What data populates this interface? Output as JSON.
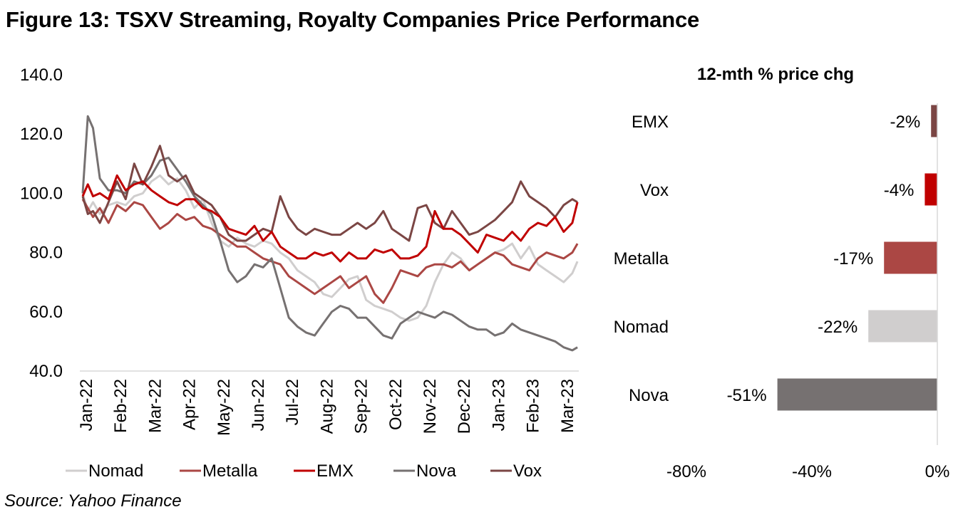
{
  "title": "Figure 13: TSXV Streaming, Royalty Companies Price Performance",
  "source": "Source: Yahoo Finance",
  "colors": {
    "Nomad": "#d0cece",
    "Metalla": "#ab4744",
    "EMX": "#c00000",
    "Nova": "#767171",
    "Vox": "#7b4644",
    "axis": "#d9d9d9"
  },
  "chart_data": [
    {
      "type": "line",
      "title": "",
      "xlabel": "",
      "ylabel": "",
      "ylim": [
        40,
        140
      ],
      "yticks": [
        "140.0",
        "120.0",
        "100.0",
        "80.0",
        "60.0",
        "40.0"
      ],
      "ytick_values": [
        140,
        120,
        100,
        80,
        60,
        40
      ],
      "categories": [
        "Jan-22",
        "Feb-22",
        "Mar-22",
        "Apr-22",
        "May-22",
        "Jun-22",
        "Jul-22",
        "Aug-22",
        "Sep-22",
        "Oct-22",
        "Nov-22",
        "Dec-22",
        "Jan-23",
        "Feb-23",
        "Mar-23"
      ],
      "x_months": [
        0,
        0.15,
        0.3,
        0.5,
        0.75,
        1,
        1.25,
        1.5,
        1.75,
        2,
        2.25,
        2.5,
        2.75,
        3,
        3.25,
        3.5,
        3.75,
        4,
        4.25,
        4.5,
        4.75,
        5,
        5.25,
        5.5,
        5.75,
        6,
        6.25,
        6.5,
        6.75,
        7,
        7.25,
        7.5,
        7.75,
        8,
        8.25,
        8.5,
        8.75,
        9,
        9.25,
        9.5,
        9.75,
        10,
        10.25,
        10.5,
        10.75,
        11,
        11.25,
        11.5,
        11.75,
        12,
        12.25,
        12.5,
        12.75,
        13,
        13.25,
        13.5,
        13.75,
        14,
        14.25,
        14.4
      ],
      "legend": "bottom",
      "series": [
        {
          "name": "Nomad",
          "values": [
            100,
            94,
            97,
            93,
            96,
            97,
            96,
            99,
            100,
            104,
            106,
            103,
            105,
            101,
            95,
            98,
            90,
            84,
            82,
            85,
            83,
            82,
            84,
            83,
            80,
            78,
            74,
            72,
            70,
            66,
            65,
            68,
            71,
            72,
            64,
            62,
            61,
            60,
            58,
            57,
            58,
            62,
            70,
            76,
            80,
            78,
            74,
            76,
            78,
            80,
            81,
            83,
            78,
            82,
            76,
            74,
            72,
            70,
            73,
            77
          ]
        },
        {
          "name": "Metalla",
          "values": [
            98,
            95,
            92,
            95,
            90,
            96,
            94,
            97,
            96,
            92,
            88,
            90,
            93,
            91,
            92,
            89,
            88,
            86,
            84,
            82,
            82,
            80,
            78,
            77,
            76,
            72,
            70,
            68,
            66,
            68,
            70,
            72,
            68,
            70,
            72,
            66,
            63,
            68,
            74,
            73,
            72,
            75,
            76,
            76,
            75,
            77,
            74,
            76,
            78,
            80,
            79,
            76,
            75,
            74,
            78,
            80,
            79,
            78,
            80,
            83
          ]
        },
        {
          "name": "EMX",
          "values": [
            99,
            103,
            99,
            100,
            98,
            106,
            101,
            103,
            104,
            101,
            99,
            97,
            96,
            98,
            98,
            95,
            94,
            92,
            88,
            87,
            86,
            89,
            84,
            87,
            82,
            80,
            78,
            78,
            80,
            79,
            80,
            77,
            80,
            78,
            78,
            81,
            80,
            81,
            78,
            78,
            79,
            82,
            94,
            88,
            88,
            86,
            83,
            80,
            86,
            85,
            84,
            87,
            84,
            88,
            90,
            89,
            92,
            87,
            90,
            97
          ]
        },
        {
          "name": "Nova",
          "values": [
            100,
            126,
            122,
            105,
            101,
            101,
            100,
            104,
            103,
            106,
            111,
            112,
            108,
            104,
            99,
            96,
            93,
            84,
            74,
            70,
            72,
            76,
            75,
            78,
            68,
            58,
            55,
            53,
            52,
            56,
            60,
            62,
            61,
            58,
            58,
            55,
            52,
            51,
            56,
            58,
            60,
            59,
            58,
            60,
            59,
            57,
            55,
            54,
            54,
            52,
            53,
            56,
            54,
            53,
            52,
            51,
            50,
            48,
            47,
            48
          ]
        },
        {
          "name": "Vox",
          "values": [
            99,
            93,
            94,
            90,
            97,
            104,
            98,
            110,
            103,
            109,
            116,
            106,
            104,
            106,
            100,
            98,
            96,
            92,
            86,
            84,
            84,
            86,
            88,
            87,
            99,
            92,
            88,
            86,
            88,
            87,
            86,
            86,
            88,
            90,
            88,
            90,
            94,
            88,
            86,
            84,
            95,
            96,
            90,
            88,
            94,
            90,
            86,
            87,
            89,
            91,
            94,
            97,
            104,
            99,
            97,
            95,
            92,
            96,
            98,
            97
          ]
        }
      ]
    },
    {
      "type": "bar",
      "orientation": "horizontal",
      "title": "12-mth % price chg",
      "categories": [
        "EMX",
        "Vox",
        "Metalla",
        "Nomad",
        "Nova"
      ],
      "values": [
        -2,
        -4,
        -17,
        -22,
        -51
      ],
      "data_labels": [
        "-2%",
        "-4%",
        "-17%",
        "-22%",
        "-51%"
      ],
      "bar_colors": [
        "#7b4644",
        "#c00000",
        "#ab4744",
        "#d0cece",
        "#767171"
      ],
      "xlim": [
        -80,
        0
      ],
      "xticks": [
        "-80%",
        "-40%",
        "0%"
      ],
      "xtick_values": [
        -80,
        -40,
        0
      ]
    }
  ]
}
